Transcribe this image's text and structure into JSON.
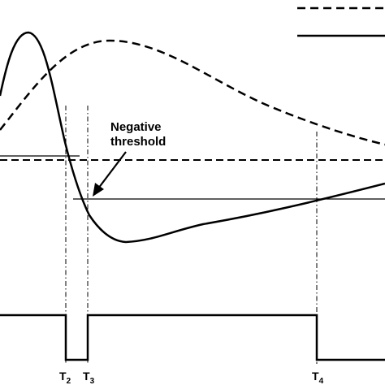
{
  "annotation": {
    "line1": "Negative",
    "line2": "threshold"
  },
  "time_markers": [
    {
      "letter": "T",
      "sub": "2"
    },
    {
      "letter": "T",
      "sub": "3"
    },
    {
      "letter": "T",
      "sub": "4"
    }
  ],
  "legend": {
    "dashed_label": "",
    "solid_label": ""
  },
  "colors": {
    "stroke": "#000000",
    "background": "#ffffff"
  }
}
